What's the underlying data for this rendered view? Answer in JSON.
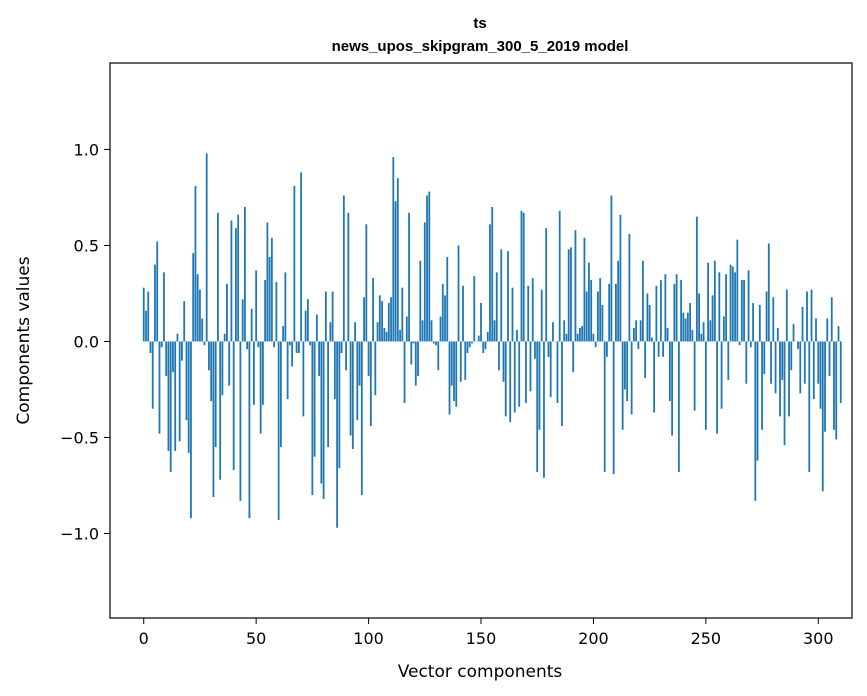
{
  "chart_data": {
    "type": "bar",
    "title": "ts",
    "subtitle": "news_upos_skipgram_300_5_2019 model",
    "xlabel": "Vector components",
    "ylabel": "Components values",
    "xlim": [
      -15,
      315
    ],
    "ylim": [
      -1.44,
      1.45
    ],
    "xticks": [
      0,
      50,
      100,
      150,
      200,
      250,
      300
    ],
    "xtick_labels": [
      "0",
      "50",
      "100",
      "150",
      "200",
      "250",
      "300"
    ],
    "yticks": [
      -1.0,
      -0.5,
      0.0,
      0.5,
      1.0
    ],
    "ytick_labels": [
      "−1.0",
      "−0.5",
      "0.0",
      "0.5",
      "1.0"
    ],
    "bar_color": "#1f77b4",
    "grid": false,
    "values": [
      0.28,
      0.16,
      0.26,
      -0.06,
      -0.35,
      0.4,
      0.52,
      -0.48,
      -0.03,
      0.36,
      -0.18,
      -0.57,
      -0.68,
      -0.16,
      -0.57,
      0.04,
      -0.52,
      -0.1,
      0.21,
      -0.41,
      -0.58,
      -0.92,
      0.46,
      0.81,
      0.35,
      0.27,
      0.12,
      -0.02,
      0.98,
      -0.15,
      -0.31,
      -0.81,
      -0.55,
      0.67,
      -0.72,
      -0.28,
      0.04,
      0.3,
      -0.23,
      0.63,
      -0.67,
      0.59,
      0.66,
      -0.83,
      0.22,
      0.7,
      -0.04,
      -0.92,
      0.17,
      -0.33,
      0.37,
      -0.03,
      -0.48,
      -0.33,
      0.32,
      0.62,
      0.44,
      0.54,
      -0.03,
      0.31,
      -0.93,
      -0.55,
      0.08,
      0.36,
      -0.3,
      -0.02,
      -0.13,
      0.81,
      -0.06,
      -0.06,
      0.88,
      -0.39,
      0.16,
      0.22,
      -0.02,
      -0.8,
      -0.6,
      0.14,
      -0.18,
      -0.74,
      -0.82,
      0.26,
      -0.55,
      0.1,
      0.26,
      -0.3,
      -0.97,
      -0.66,
      -0.06,
      0.76,
      -0.15,
      0.67,
      -0.49,
      -0.56,
      0.1,
      -0.41,
      -0.23,
      -0.8,
      0.23,
      0.61,
      -0.18,
      -0.44,
      0.33,
      -0.28,
      0.1,
      0.24,
      0.21,
      0.07,
      0.05,
      0.2,
      0.23,
      0.96,
      0.73,
      0.85,
      0.06,
      0.28,
      -0.32,
      0.13,
      0.67,
      -0.12,
      -0.01,
      -0.23,
      -0.18,
      0.42,
      0.11,
      0.62,
      0.76,
      0.78,
      0.11,
      -0.01,
      -0.02,
      -0.15,
      0.13,
      0.3,
      0.24,
      0.44,
      -0.38,
      -0.23,
      -0.31,
      -0.34,
      0.5,
      -0.21,
      0.29,
      -0.2,
      -0.06,
      -0.03,
      -0.01,
      0.34,
      0.0,
      0.03,
      0.2,
      -0.06,
      -0.04,
      0.05,
      0.61,
      0.7,
      0.11,
      0.36,
      -0.15,
      0.48,
      -0.21,
      -0.39,
      0.47,
      -0.42,
      0.28,
      -0.37,
      0.06,
      -0.34,
      0.68,
      0.67,
      -0.32,
      0.29,
      -0.26,
      0.33,
      -0.09,
      -0.68,
      -0.46,
      0.27,
      -0.71,
      0.59,
      -0.08,
      -0.29,
      0.1,
      0.0,
      -0.32,
      0.68,
      -0.44,
      0.11,
      0.04,
      0.48,
      0.49,
      -0.16,
      0.58,
      0.04,
      0.07,
      0.08,
      0.54,
      0.26,
      0.41,
      0.32,
      0.04,
      -0.03,
      0.26,
      0.33,
      0.19,
      -0.68,
      -0.08,
      0.3,
      0.76,
      -0.69,
      0.3,
      0.42,
      0.66,
      -0.46,
      -0.25,
      -0.31,
      0.56,
      -0.38,
      0.07,
      0.11,
      -0.04,
      0.11,
      0.42,
      -0.19,
      0.25,
      0.19,
      0.02,
      -0.37,
      0.29,
      -0.08,
      0.32,
      -0.08,
      0.35,
      0.07,
      -0.31,
      -0.49,
      0.3,
      0.35,
      -0.68,
      0.32,
      0.15,
      0.12,
      0.15,
      0.2,
      0.06,
      -0.36,
      0.65,
      0.25,
      0.04,
      0.1,
      -0.46,
      0.41,
      0.11,
      0.24,
      0.42,
      -0.48,
      0.36,
      -0.35,
      0.13,
      0.35,
      -0.2,
      0.4,
      0.39,
      0.36,
      0.53,
      -0.02,
      0.32,
      0.32,
      -0.22,
      0.37,
      -0.03,
      0.2,
      -0.83,
      -0.62,
      0.19,
      -0.46,
      -0.17,
      0.26,
      0.51,
      -0.22,
      0.23,
      -0.27,
      0.07,
      -0.39,
      -0.2,
      -0.54,
      0.27,
      -0.39,
      -0.15,
      0.09,
      0.0,
      -0.04,
      -0.27,
      0.18,
      -0.22,
      0.26,
      -0.68,
      0.27,
      -0.3,
      0.12,
      -0.22,
      -0.35,
      -0.78,
      -0.47,
      0.12,
      -0.18,
      0.23,
      -0.46,
      -0.51,
      0.08,
      -0.32
    ]
  }
}
